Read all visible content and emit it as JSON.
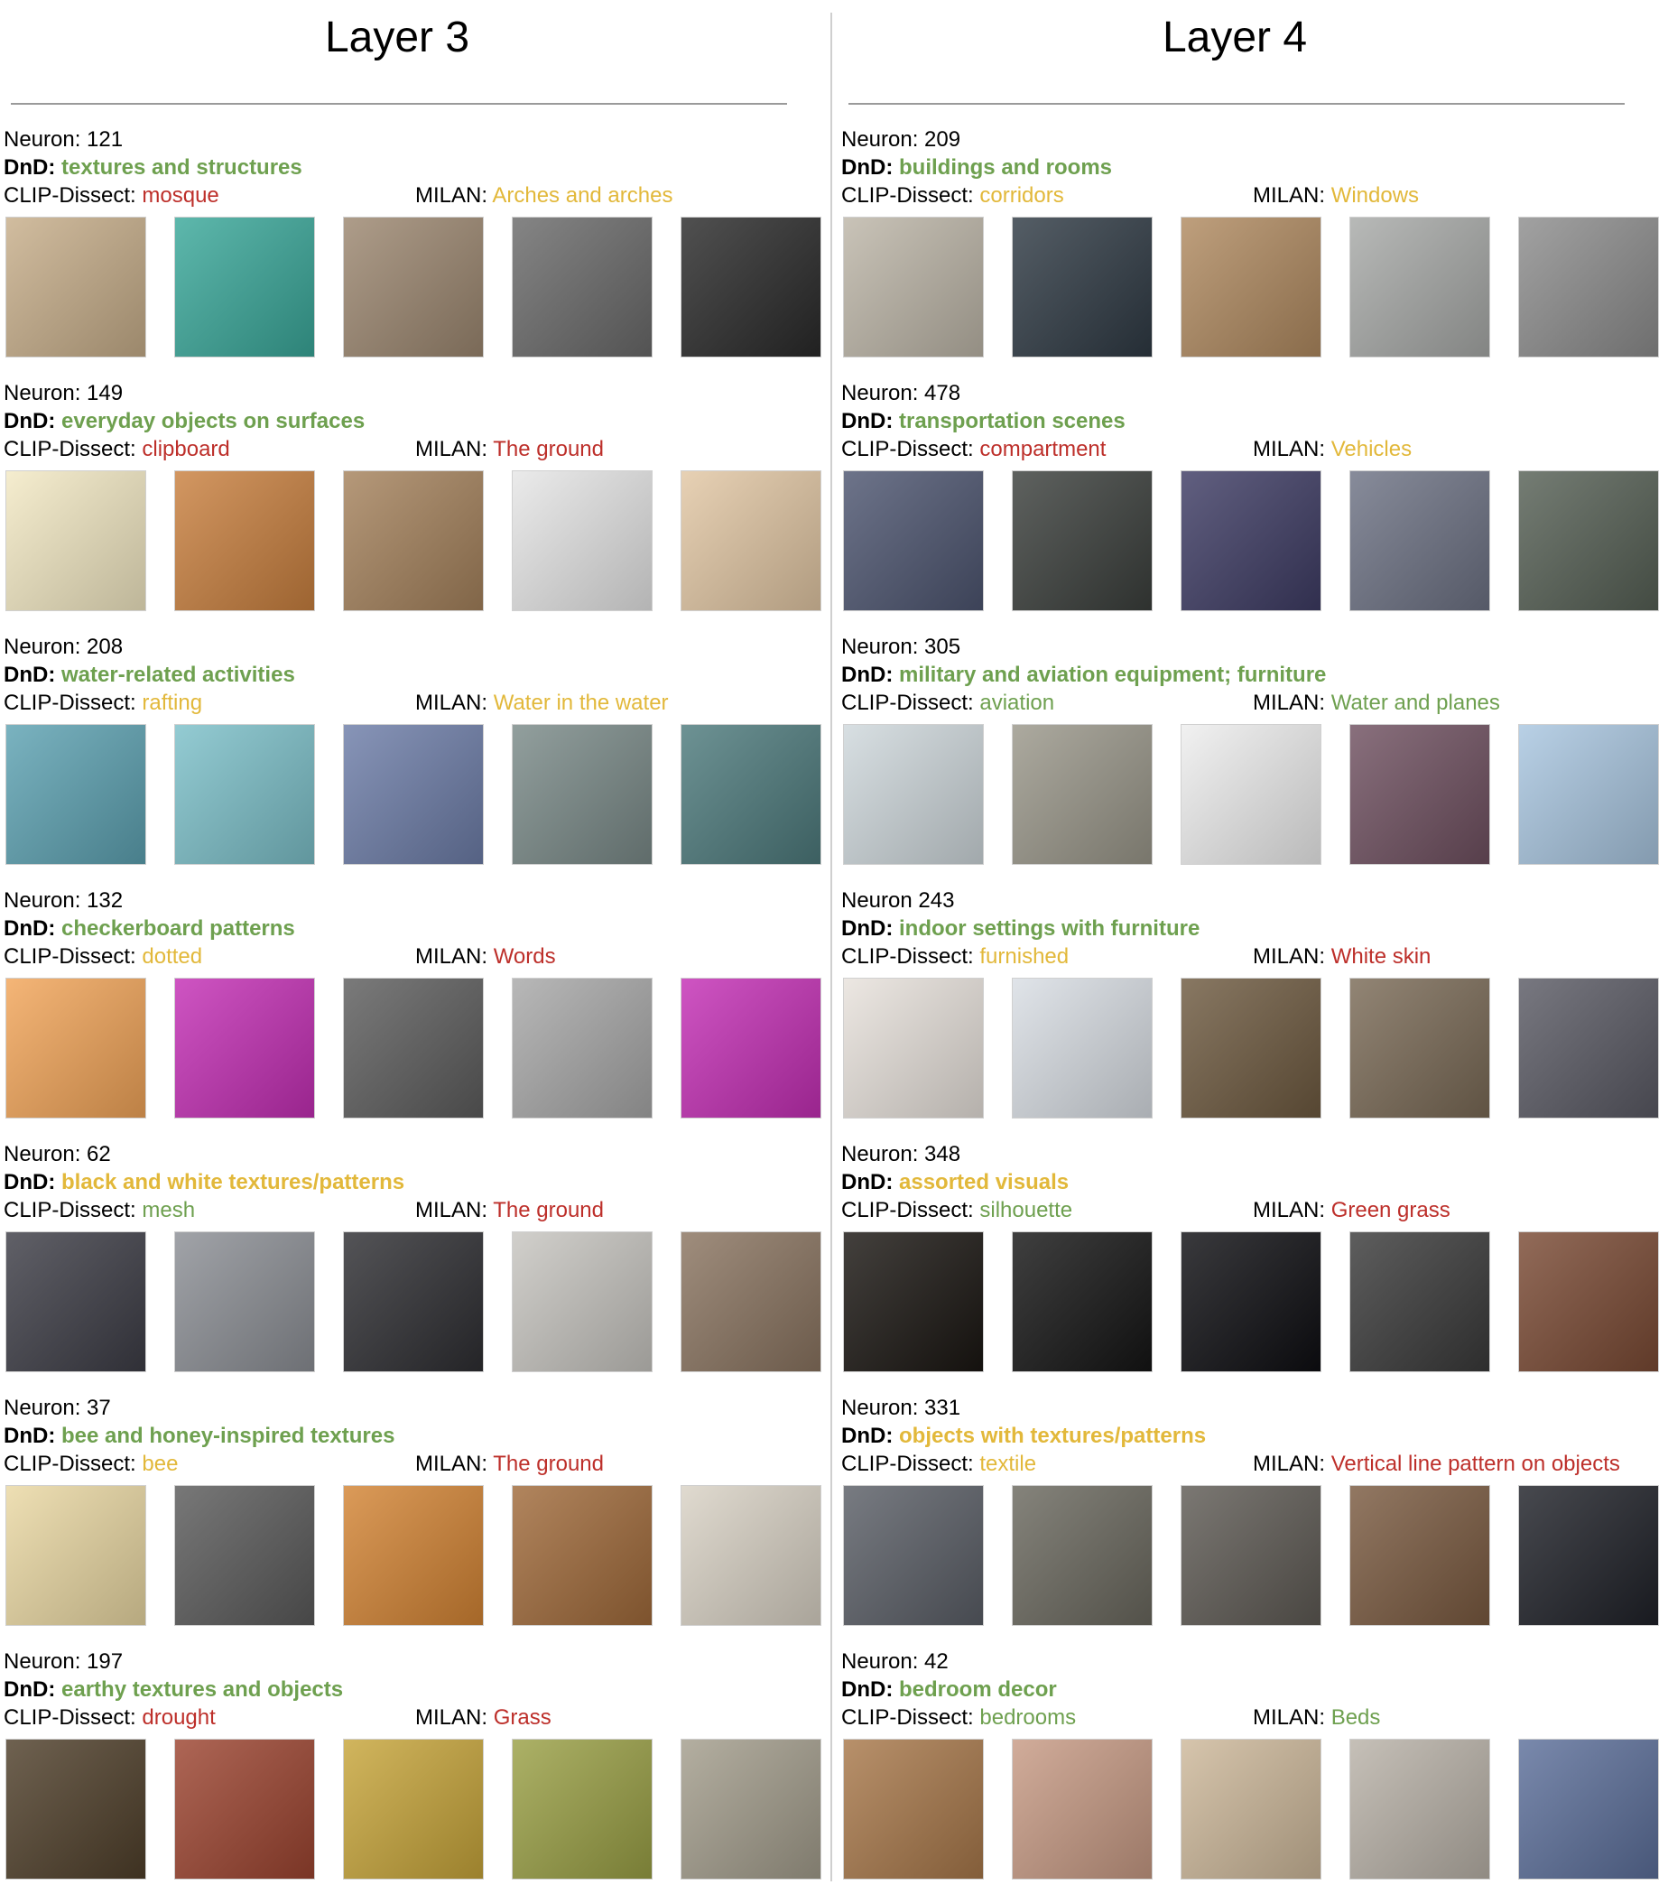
{
  "columns": [
    {
      "title": "Layer 3",
      "neurons": [
        {
          "neuron_label": "Neuron: 121",
          "dnd_prefix": "DnD:",
          "dnd": "textures and structures",
          "dnd_color": "#6ea04f",
          "clip_prefix": "CLIP-Dissect:",
          "clip": "mosque",
          "clip_color": "#bd2f2a",
          "milan_prefix": "MILAN:",
          "milan": "Arches and arches",
          "milan_color": "#e2b83a",
          "images": [
            "#c7ae8a",
            "#3aa89a",
            "#9c8770",
            "#6a6a6a",
            "#2a2a2a"
          ]
        },
        {
          "neuron_label": "Neuron: 149",
          "dnd_prefix": "DnD:",
          "dnd": "everyday objects on surfaces",
          "dnd_color": "#6ea04f",
          "clip_prefix": "CLIP-Dissect:",
          "clip": "clipboard",
          "clip_color": "#bd2f2a",
          "milan_prefix": "MILAN:",
          "milan": "The ground",
          "milan_color": "#bd2f2a",
          "images": [
            "#f3e9c4",
            "#c9803f",
            "#a5825c",
            "#e6e6e6",
            "#e2c7a4"
          ]
        },
        {
          "neuron_label": "Neuron: 208",
          "dnd_prefix": "DnD:",
          "dnd": "water-related activities",
          "dnd_color": "#6ea04f",
          "clip_prefix": "CLIP-Dissect:",
          "clip": "rafting",
          "clip_color": "#e2b83a",
          "milan_prefix": "MILAN:",
          "milan": "Water in the water",
          "milan_color": "#e2b83a",
          "images": [
            "#5da2b2",
            "#7cc0c9",
            "#6d7da8",
            "#7a8a88",
            "#4d7a7c"
          ]
        },
        {
          "neuron_label": "Neuron: 132",
          "dnd_prefix": "DnD:",
          "dnd": "checkerboard patterns",
          "dnd_color": "#6ea04f",
          "clip_prefix": "CLIP-Dissect:",
          "clip": "dotted",
          "clip_color": "#e2b83a",
          "milan_prefix": "MILAN:",
          "milan": "Words",
          "milan_color": "#bd2f2a",
          "images": [
            "#f2a559",
            "#c42fb5",
            "#5d5d5d",
            "#a8a8a8",
            "#c42fb5"
          ]
        },
        {
          "neuron_label": "Neuron: 62",
          "dnd_prefix": "DnD:",
          "dnd": "black and white textures/patterns",
          "dnd_color": "#e2b83a",
          "clip_prefix": "CLIP-Dissect:",
          "clip": "mesh",
          "clip_color": "#6ea04f",
          "milan_prefix": "MILAN:",
          "milan": "The ground",
          "milan_color": "#bd2f2a",
          "images": [
            "#3d3d46",
            "#8c8f95",
            "#2e2e32",
            "#c7c5c0",
            "#8a7460"
          ]
        },
        {
          "neuron_label": "Neuron: 37",
          "dnd_prefix": "DnD:",
          "dnd": "bee and honey-inspired textures",
          "dnd_color": "#6ea04f",
          "clip_prefix": "CLIP-Dissect:",
          "clip": "bee",
          "clip_color": "#e2b83a",
          "milan_prefix": "MILAN:",
          "milan": "The ground",
          "milan_color": "#bd2f2a",
          "images": [
            "#ead8a3",
            "#5a5a5a",
            "#d38434",
            "#a06a3a",
            "#d9d2c5"
          ]
        },
        {
          "neuron_label": "Neuron: 197",
          "dnd_prefix": "DnD:",
          "dnd": "earthy textures and objects",
          "dnd_color": "#6ea04f",
          "clip_prefix": "CLIP-Dissect:",
          "clip": "drought",
          "clip_color": "#bd2f2a",
          "milan_prefix": "MILAN:",
          "milan": "Grass",
          "milan_color": "#bd2f2a",
          "images": [
            "#4f3f2a",
            "#9c4430",
            "#c7a53a",
            "#9aa045",
            "#a39d8c"
          ]
        }
      ]
    },
    {
      "title": "Layer 4",
      "neurons": [
        {
          "neuron_label": "Neuron: 209",
          "dnd_prefix": "DnD:",
          "dnd": "buildings and rooms",
          "dnd_color": "#6ea04f",
          "clip_prefix": "CLIP-Dissect:",
          "clip": "corridors",
          "clip_color": "#e2b83a",
          "milan_prefix": "MILAN:",
          "milan": "Windows",
          "milan_color": "#e2b83a",
          "images": [
            "#bdb6a8",
            "#2f3a44",
            "#b08a60",
            "#a8aaa8",
            "#8d8d8d"
          ]
        },
        {
          "neuron_label": "Neuron: 478",
          "dnd_prefix": "DnD:",
          "dnd": "transportation scenes",
          "dnd_color": "#6ea04f",
          "clip_prefix": "CLIP-Dissect:",
          "clip": "compartment",
          "clip_color": "#bd2f2a",
          "milan_prefix": "MILAN:",
          "milan": "Vehicles",
          "milan_color": "#e2b83a",
          "images": [
            "#4d5570",
            "#3b3f3c",
            "#3e3c64",
            "#6d7284",
            "#566055"
          ]
        },
        {
          "neuron_label": "Neuron: 305",
          "dnd_prefix": "DnD:",
          "dnd": "military and aviation equipment; furniture",
          "dnd_color": "#6ea04f",
          "clip_prefix": "CLIP-Dissect:",
          "clip": "aviation",
          "clip_color": "#6ea04f",
          "milan_prefix": "MILAN:",
          "milan": "Water and planes",
          "milan_color": "#6ea04f",
          "images": [
            "#cfd8dc",
            "#9a978a",
            "#eeeeee",
            "#6f5060",
            "#a9c6e0"
          ]
        },
        {
          "neuron_label": "Neuron 243",
          "dnd_prefix": "DnD:",
          "dnd": "indoor settings with furniture",
          "dnd_color": "#6ea04f",
          "clip_prefix": "CLIP-Dissect:",
          "clip": "furnished",
          "clip_color": "#e2b83a",
          "milan_prefix": "MILAN:",
          "milan": "White skin",
          "milan_color": "#bd2f2a",
          "images": [
            "#e8e2dc",
            "#d9dee4",
            "#6e5a40",
            "#7a6a56",
            "#5a5a64"
          ]
        },
        {
          "neuron_label": "Neuron: 348",
          "dnd_prefix": "DnD:",
          "dnd": "assorted visuals",
          "dnd_color": "#e2b83a",
          "clip_prefix": "CLIP-Dissect:",
          "clip": "silhouette",
          "clip_color": "#6ea04f",
          "milan_prefix": "MILAN:",
          "milan": "Green grass",
          "milan_color": "#bd2f2a",
          "images": [
            "#1a1612",
            "#151515",
            "#0e0e12",
            "#3a3a3a",
            "#7a4a34"
          ]
        },
        {
          "neuron_label": "Neuron: 331",
          "dnd_prefix": "DnD:",
          "dnd": "objects with textures/patterns",
          "dnd_color": "#e2b83a",
          "clip_prefix": "CLIP-Dissect:",
          "clip": "textile",
          "clip_color": "#e2b83a",
          "milan_prefix": "MILAN:",
          "milan": "Vertical line pattern on objects",
          "milan_color": "#bd2f2a",
          "images": [
            "#5a5e66",
            "#6a685e",
            "#5e5a54",
            "#7a5a40",
            "#1f2128"
          ]
        },
        {
          "neuron_label": "Neuron: 42",
          "dnd_prefix": "DnD:",
          "dnd": "bedroom decor",
          "dnd_color": "#6ea04f",
          "clip_prefix": "CLIP-Dissect:",
          "clip": "bedrooms",
          "clip_color": "#6ea04f",
          "milan_prefix": "MILAN:",
          "milan": "Beds",
          "milan_color": "#6ea04f",
          "images": [
            "#a8784a",
            "#c79a84",
            "#cdb89a",
            "#b9b2a8",
            "#5c6f9a"
          ]
        }
      ]
    }
  ]
}
